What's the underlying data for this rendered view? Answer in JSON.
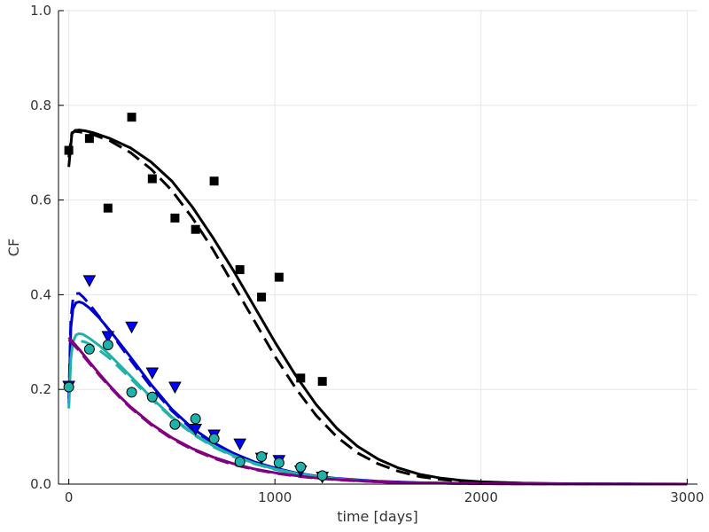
{
  "chart_data": {
    "type": "scatter",
    "xlabel": "time [days]",
    "ylabel": "CF",
    "xlim": [
      -50,
      3050
    ],
    "ylim": [
      0,
      1.0
    ],
    "xticks": [
      0,
      1000,
      2000,
      3000
    ],
    "xtick_labels": [
      "0",
      "1000",
      "2000",
      "3000"
    ],
    "yticks": [
      0.0,
      0.2,
      0.4,
      0.6,
      0.8,
      1.0
    ],
    "ytick_labels": [
      "0.0",
      "0.2",
      "0.4",
      "0.6",
      "0.8",
      "1.0"
    ],
    "grid": true,
    "series": [
      {
        "kind": "points",
        "marker": "square",
        "color": "#000000",
        "x": [
          0,
          100,
          190,
          305,
          405,
          515,
          615,
          705,
          830,
          935,
          1020,
          1125,
          1230
        ],
        "y": [
          0.705,
          0.73,
          0.583,
          0.775,
          0.645,
          0.562,
          0.538,
          0.64,
          0.453,
          0.395,
          0.437,
          0.224,
          0.217
        ]
      },
      {
        "kind": "points",
        "marker": "triangle-down",
        "color": "#0000ff",
        "x": [
          0,
          100,
          190,
          305,
          405,
          515,
          615,
          705,
          830,
          935,
          1020,
          1125,
          1230
        ],
        "y": [
          0.207,
          0.43,
          0.312,
          0.332,
          0.235,
          0.205,
          0.116,
          0.104,
          0.085,
          0.055,
          0.05,
          0.028,
          0.015
        ]
      },
      {
        "kind": "points",
        "marker": "circle",
        "color": "#20b2aa",
        "x": [
          0,
          100,
          190,
          305,
          405,
          515,
          615,
          705,
          830,
          935,
          1020,
          1125,
          1230
        ],
        "y": [
          0.205,
          0.285,
          0.294,
          0.194,
          0.184,
          0.126,
          0.138,
          0.096,
          0.047,
          0.058,
          0.045,
          0.036,
          0.018
        ]
      },
      {
        "kind": "line",
        "dash": "solid",
        "color": "#000000",
        "x": [
          0,
          15,
          30,
          50,
          80,
          120,
          200,
          300,
          400,
          500,
          600,
          700,
          800,
          900,
          1000,
          1100,
          1200,
          1300,
          1400,
          1500,
          1600,
          1700,
          1800,
          1900,
          2000,
          2200,
          2400,
          2600,
          2800,
          3000
        ],
        "y": [
          0.67,
          0.74,
          0.747,
          0.748,
          0.746,
          0.742,
          0.73,
          0.71,
          0.68,
          0.64,
          0.585,
          0.52,
          0.45,
          0.375,
          0.3,
          0.23,
          0.168,
          0.118,
          0.08,
          0.053,
          0.034,
          0.021,
          0.013,
          0.008,
          0.005,
          0.002,
          0.001,
          0.0005,
          0.0002,
          0.0001
        ]
      },
      {
        "kind": "line",
        "dash": "dashed",
        "color": "#000000",
        "x": [
          0,
          15,
          30,
          50,
          80,
          120,
          200,
          300,
          400,
          500,
          600,
          700,
          800,
          900,
          1000,
          1100,
          1200,
          1300,
          1400,
          1500,
          1600,
          1700,
          1800,
          1900,
          2000,
          2200,
          2400,
          2600,
          2800,
          3000
        ],
        "y": [
          0.69,
          0.742,
          0.745,
          0.744,
          0.742,
          0.738,
          0.725,
          0.7,
          0.665,
          0.62,
          0.562,
          0.495,
          0.42,
          0.345,
          0.27,
          0.203,
          0.145,
          0.1,
          0.066,
          0.043,
          0.027,
          0.016,
          0.01,
          0.006,
          0.003,
          0.001,
          0.0004,
          0.0001,
          5e-05,
          2e-05
        ]
      },
      {
        "kind": "line",
        "dash": "solid",
        "color": "#0000cd",
        "x": [
          0,
          10,
          20,
          35,
          50,
          70,
          100,
          150,
          200,
          300,
          400,
          500,
          600,
          700,
          800,
          900,
          1000,
          1100,
          1200,
          1300,
          1500,
          1700,
          2000,
          2500,
          3000
        ],
        "y": [
          0.17,
          0.33,
          0.37,
          0.383,
          0.385,
          0.382,
          0.372,
          0.35,
          0.324,
          0.268,
          0.21,
          0.158,
          0.118,
          0.088,
          0.065,
          0.047,
          0.034,
          0.024,
          0.017,
          0.012,
          0.006,
          0.003,
          0.001,
          0.0002,
          5e-05
        ]
      },
      {
        "kind": "line",
        "dash": "dashed",
        "color": "#0000cd",
        "x": [
          0,
          10,
          20,
          35,
          50,
          70,
          100,
          150,
          200,
          300,
          400,
          500,
          600,
          700,
          800,
          900,
          1000,
          1100,
          1200,
          1300,
          1500,
          1700,
          2000,
          2500,
          3000
        ],
        "y": [
          0.18,
          0.35,
          0.39,
          0.402,
          0.403,
          0.395,
          0.38,
          0.352,
          0.322,
          0.262,
          0.205,
          0.155,
          0.115,
          0.085,
          0.062,
          0.045,
          0.032,
          0.023,
          0.016,
          0.011,
          0.005,
          0.0025,
          0.001,
          0.0002,
          4e-05
        ]
      },
      {
        "kind": "line",
        "dash": "solid",
        "color": "#20b2aa",
        "x": [
          0,
          10,
          20,
          35,
          50,
          70,
          100,
          150,
          200,
          300,
          400,
          500,
          600,
          700,
          800,
          900,
          1000,
          1100,
          1200,
          1300,
          1500,
          1700,
          2000,
          2500,
          3000
        ],
        "y": [
          0.16,
          0.265,
          0.3,
          0.315,
          0.318,
          0.316,
          0.308,
          0.292,
          0.272,
          0.228,
          0.183,
          0.142,
          0.108,
          0.081,
          0.06,
          0.044,
          0.032,
          0.023,
          0.016,
          0.011,
          0.005,
          0.0025,
          0.001,
          0.0002,
          4e-05
        ]
      },
      {
        "kind": "line",
        "dash": "dashed",
        "color": "#20b2aa",
        "x": [
          60,
          80,
          100,
          150,
          200,
          300,
          400,
          500,
          600,
          700,
          800,
          900,
          1000,
          1100,
          1200,
          1300,
          1500,
          1700,
          2000,
          2500,
          3000
        ],
        "y": [
          0.302,
          0.3,
          0.296,
          0.282,
          0.265,
          0.223,
          0.18,
          0.14,
          0.106,
          0.079,
          0.058,
          0.043,
          0.031,
          0.022,
          0.015,
          0.0105,
          0.005,
          0.0023,
          0.001,
          0.0002,
          4e-05
        ]
      },
      {
        "kind": "line",
        "dash": "solid",
        "color": "#800080",
        "x": [
          0,
          50,
          100,
          150,
          200,
          250,
          300,
          400,
          500,
          600,
          700,
          800,
          900,
          1000,
          1100,
          1200,
          1300,
          1500,
          1700,
          2000,
          2500,
          3000
        ],
        "y": [
          0.31,
          0.285,
          0.258,
          0.232,
          0.207,
          0.184,
          0.163,
          0.127,
          0.098,
          0.075,
          0.057,
          0.043,
          0.032,
          0.024,
          0.018,
          0.013,
          0.0095,
          0.005,
          0.0026,
          0.001,
          0.0002,
          3e-05
        ]
      },
      {
        "kind": "line",
        "dash": "dashed",
        "color": "#800080",
        "x": [
          0,
          50,
          100,
          150,
          200,
          250,
          300,
          400,
          500,
          600,
          700,
          800,
          900,
          1000,
          1100,
          1200,
          1300,
          1500,
          1700,
          2000,
          2500,
          3000
        ],
        "y": [
          0.305,
          0.282,
          0.255,
          0.229,
          0.205,
          0.182,
          0.161,
          0.125,
          0.096,
          0.073,
          0.055,
          0.041,
          0.031,
          0.023,
          0.017,
          0.0125,
          0.009,
          0.0047,
          0.0024,
          0.0009,
          0.00018,
          3e-05
        ]
      }
    ]
  }
}
